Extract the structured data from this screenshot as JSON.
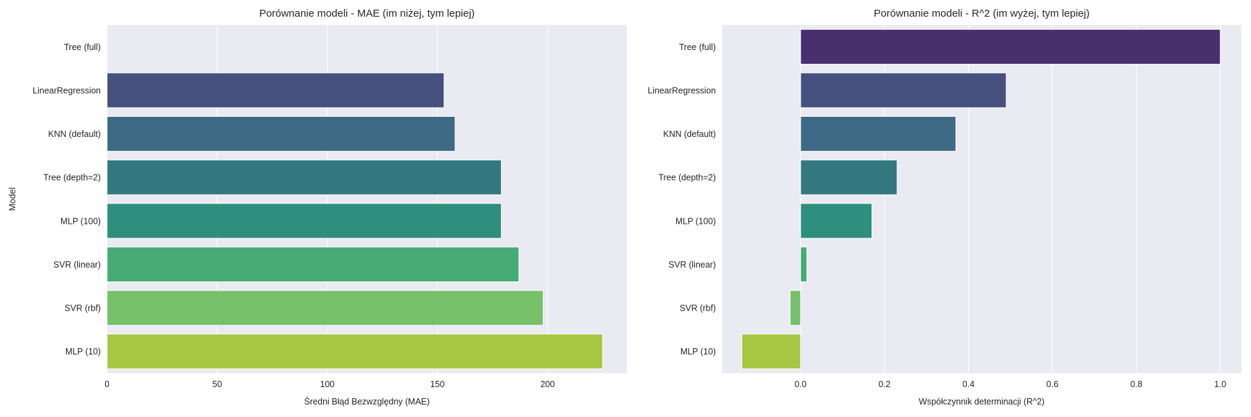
{
  "chart_data": [
    {
      "type": "bar",
      "orientation": "horizontal",
      "title": "Porównanie modeli - MAE (im niżej, tym lepiej)",
      "xlabel": "Średni Błąd Bezwzględny (MAE)",
      "ylabel": "Model",
      "xlim": [
        0,
        236
      ],
      "xticks": [
        0,
        50,
        100,
        150,
        200
      ],
      "xtick_labels": [
        "0",
        "50",
        "100",
        "150",
        "200"
      ],
      "grid": true,
      "categories": [
        "Tree (full)",
        "LinearRegression",
        "KNN (default)",
        "Tree (depth=2)",
        "MLP (100)",
        "SVR (linear)",
        "SVR (rbf)",
        "MLP (10)"
      ],
      "values": [
        0,
        153,
        158,
        179,
        179,
        187,
        198,
        225
      ],
      "colors": [
        "#482878",
        "#46507e",
        "#3e6a86",
        "#33787f",
        "#2e8f7e",
        "#46ab74",
        "#76c06a",
        "#a8c742"
      ]
    },
    {
      "type": "bar",
      "orientation": "horizontal",
      "title": "Porównanie modeli - R^2 (im wyżej, tym lepiej)",
      "xlabel": "Współczynnik determinacji (R^2)",
      "ylabel": "",
      "xlim": [
        -0.187,
        1.05
      ],
      "xticks": [
        0.0,
        0.2,
        0.4,
        0.6,
        0.8,
        1.0
      ],
      "xtick_labels": [
        "0.0",
        "0.2",
        "0.4",
        "0.6",
        "0.8",
        "1.0"
      ],
      "grid": true,
      "categories": [
        "Tree (full)",
        "LinearRegression",
        "KNN (default)",
        "Tree (depth=2)",
        "MLP (100)",
        "SVR (linear)",
        "SVR (rbf)",
        "MLP (10)"
      ],
      "values": [
        1.0,
        0.49,
        0.37,
        0.23,
        0.17,
        0.015,
        -0.025,
        -0.14
      ],
      "colors": [
        "#482f6e",
        "#46507e",
        "#3e6a86",
        "#33787f",
        "#2e8f7e",
        "#46ab74",
        "#76c06a",
        "#a8c742"
      ]
    }
  ]
}
